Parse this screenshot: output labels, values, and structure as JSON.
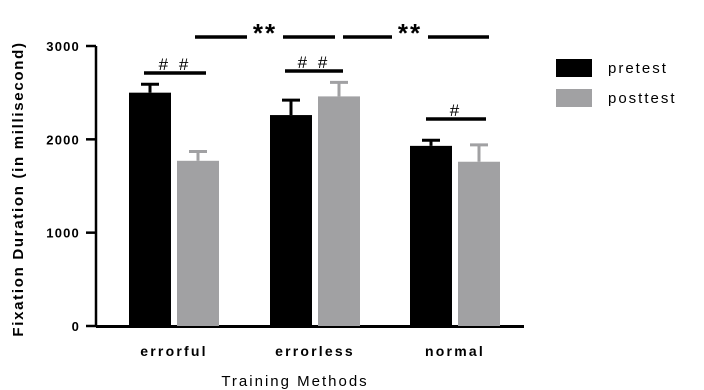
{
  "chart_data": {
    "type": "bar",
    "title": "",
    "xlabel": "Training Methods",
    "ylabel": "Fixation Duration (in millisecond)",
    "ylim": [
      0,
      3000
    ],
    "yticks": [
      "0",
      "1000",
      "2000",
      "3000"
    ],
    "categories": [
      "errorful",
      "errorless",
      "normal"
    ],
    "series": [
      {
        "name": "pretest",
        "color": "#000000",
        "values": [
          2500,
          2260,
          1930
        ],
        "errors": [
          90,
          160,
          60
        ]
      },
      {
        "name": "posttest",
        "color": "#a1a1a3",
        "values": [
          1770,
          2460,
          1760
        ],
        "errors": [
          100,
          150,
          180
        ]
      }
    ],
    "legend_position": "right",
    "annotations": [
      {
        "text": "# #",
        "type": "within-group",
        "category": "errorful"
      },
      {
        "text": "# #",
        "type": "within-group",
        "category": "errorless"
      },
      {
        "text": "#",
        "type": "within-group",
        "category": "normal"
      },
      {
        "text": "**",
        "type": "between-group",
        "from": "errorful",
        "to": "errorless"
      },
      {
        "text": "**",
        "type": "between-group",
        "from": "errorless",
        "to": "normal"
      }
    ]
  }
}
